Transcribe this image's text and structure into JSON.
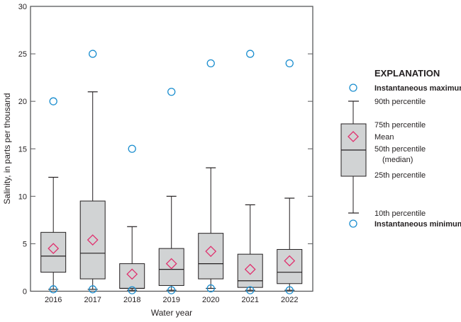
{
  "chart_data": {
    "type": "box",
    "xlabel": "Water year",
    "ylabel": "Salinity, in parts per thousand",
    "ylim": [
      0,
      30
    ],
    "yticks": [
      0,
      5,
      10,
      15,
      20,
      25,
      30
    ],
    "grid": false,
    "legend_placement": "right",
    "categories": [
      "2016",
      "2017",
      "2018",
      "2019",
      "2020",
      "2021",
      "2022"
    ],
    "series": {
      "instantaneous_maximum": [
        20,
        25,
        15,
        21,
        24,
        25,
        24
      ],
      "p90": [
        12.0,
        21.0,
        6.8,
        10.0,
        13.0,
        9.1,
        9.8
      ],
      "p75": [
        6.2,
        9.5,
        2.9,
        4.5,
        6.1,
        3.9,
        4.4
      ],
      "mean": [
        4.5,
        5.4,
        1.8,
        2.9,
        4.2,
        2.3,
        3.2
      ],
      "median": [
        3.7,
        4.0,
        0.3,
        2.3,
        2.9,
        1.1,
        2.0
      ],
      "p25": [
        2.0,
        1.3,
        0.3,
        0.6,
        1.3,
        0.4,
        0.8
      ],
      "p10": [
        0.2,
        0.2,
        0.1,
        0.1,
        0.3,
        0.1,
        0.1
      ],
      "instantaneous_minimum": [
        0.2,
        0.2,
        0.1,
        0.1,
        0.3,
        0.1,
        0.1
      ]
    },
    "colors": {
      "box_fill": "#d1d3d4",
      "box_stroke": "#231f20",
      "mean": "#e0306e",
      "extremes": "#1b8ecf"
    },
    "legend": {
      "title": "EXPLANATION",
      "max": "Instantaneous maximum",
      "p90": "90th percentile",
      "p75": "75th percentile",
      "mean": "Mean",
      "p50": "50th percentile",
      "p50b": "(median)",
      "p25": "25th percentile",
      "p10": "10th percentile",
      "min": "Instantaneous minimum"
    }
  }
}
